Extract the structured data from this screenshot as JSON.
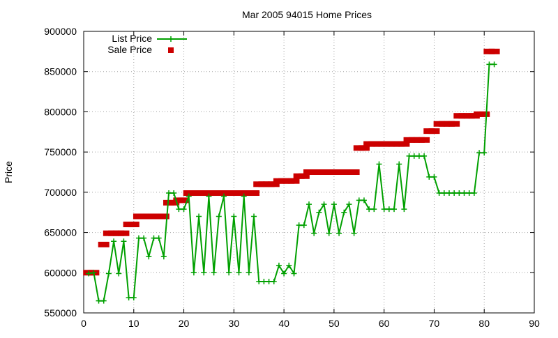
{
  "chart_data": {
    "type": "line",
    "title": "Mar 2005 94015 Home Prices",
    "xlabel": "",
    "ylabel": "Price",
    "xlim": [
      0,
      90
    ],
    "ylim": [
      550000,
      900000
    ],
    "x_ticks": [
      "0",
      "10",
      "20",
      "30",
      "40",
      "50",
      "60",
      "70",
      "80",
      "90"
    ],
    "y_ticks": [
      "550000",
      "600000",
      "650000",
      "700000",
      "750000",
      "800000",
      "850000",
      "900000"
    ],
    "grid": true,
    "legend_position": "top-left",
    "series": [
      {
        "name": "List Price",
        "style": "line+cross",
        "color": "#00a000",
        "x": [
          1,
          2,
          3,
          4,
          5,
          6,
          7,
          8,
          9,
          10,
          11,
          12,
          13,
          14,
          15,
          16,
          17,
          18,
          19,
          20,
          21,
          22,
          23,
          24,
          25,
          26,
          27,
          28,
          29,
          30,
          31,
          32,
          33,
          34,
          35,
          36,
          37,
          38,
          39,
          40,
          41,
          42,
          43,
          44,
          45,
          46,
          47,
          48,
          49,
          50,
          51,
          52,
          53,
          54,
          55,
          56,
          57,
          58,
          59,
          60,
          61,
          62,
          63,
          64,
          65,
          66,
          67,
          68,
          69,
          70,
          71,
          72,
          73,
          74,
          75,
          76,
          77,
          78,
          79,
          80,
          81,
          82
        ],
        "y": [
          599000,
          600000,
          565000,
          565000,
          599000,
          639000,
          599000,
          639000,
          569000,
          569000,
          643000,
          643000,
          620000,
          643000,
          643000,
          620000,
          699000,
          699000,
          679000,
          679000,
          695000,
          600000,
          670000,
          600000,
          695000,
          600000,
          670000,
          695000,
          600000,
          670000,
          600000,
          695000,
          600000,
          670000,
          589000,
          589000,
          589000,
          589000,
          609000,
          599000,
          609000,
          599000,
          659000,
          659000,
          685000,
          649000,
          675000,
          685000,
          649000,
          685000,
          649000,
          675000,
          685000,
          649000,
          690000,
          690000,
          679000,
          679000,
          735000,
          679000,
          679000,
          679000,
          735000,
          679000,
          745000,
          745000,
          745000,
          745000,
          719000,
          719000,
          699000,
          699000,
          699000,
          699000,
          699000,
          699000,
          699000,
          699000,
          749000,
          749000,
          859000,
          859000
        ]
      },
      {
        "name": "Sale Price",
        "style": "square-points",
        "color": "#cc0000",
        "x": [
          1,
          2,
          4,
          5,
          6,
          7,
          8,
          9,
          10,
          11,
          12,
          13,
          14,
          15,
          16,
          17,
          18,
          19,
          20,
          21,
          22,
          23,
          24,
          25,
          26,
          27,
          28,
          29,
          30,
          31,
          32,
          33,
          34,
          35,
          36,
          37,
          38,
          39,
          40,
          41,
          42,
          43,
          44,
          45,
          46,
          47,
          48,
          49,
          50,
          51,
          52,
          53,
          54,
          55,
          56,
          57,
          58,
          59,
          60,
          61,
          62,
          63,
          64,
          65,
          66,
          67,
          68,
          69,
          70,
          71,
          72,
          73,
          74,
          75,
          76,
          77,
          78,
          79,
          80,
          81,
          82
        ],
        "y": [
          600000,
          600000,
          635000,
          649000,
          649000,
          649000,
          649000,
          660000,
          660000,
          670000,
          670000,
          670000,
          670000,
          670000,
          670000,
          687000,
          687000,
          690000,
          690000,
          699000,
          699000,
          699000,
          699000,
          699000,
          699000,
          699000,
          699000,
          699000,
          699000,
          699000,
          699000,
          699000,
          699000,
          710000,
          710000,
          710000,
          710000,
          714000,
          714000,
          714000,
          714000,
          720000,
          720000,
          725000,
          725000,
          725000,
          725000,
          725000,
          725000,
          725000,
          725000,
          725000,
          725000,
          755000,
          755000,
          760000,
          760000,
          760000,
          760000,
          760000,
          760000,
          760000,
          760000,
          765000,
          765000,
          765000,
          765000,
          776000,
          776000,
          785000,
          785000,
          785000,
          785000,
          795000,
          795000,
          795000,
          795000,
          797000,
          797000,
          875000,
          875000
        ]
      }
    ]
  }
}
